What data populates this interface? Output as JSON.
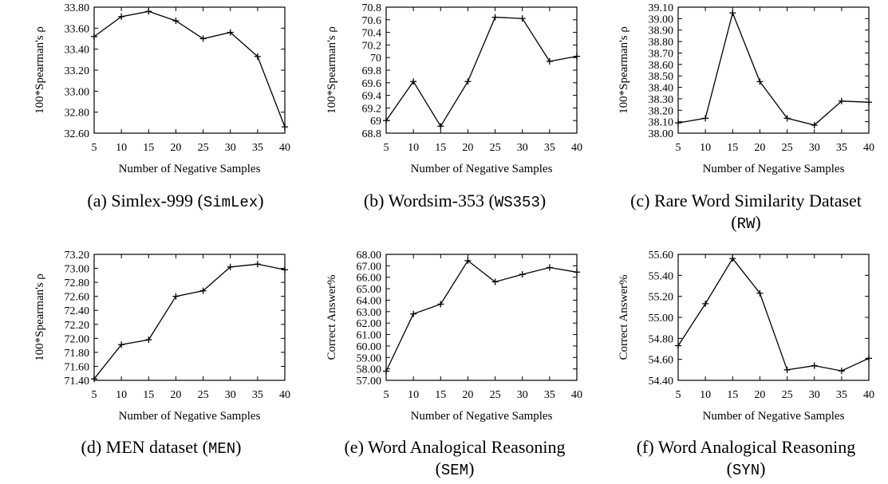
{
  "chart_data": [
    {
      "id": "a",
      "type": "line",
      "x": [
        5,
        10,
        15,
        20,
        25,
        30,
        35,
        40
      ],
      "values": [
        33.52,
        33.71,
        33.76,
        33.67,
        33.5,
        33.56,
        33.33,
        32.66
      ],
      "xlabel": "Number of Negative Samples",
      "ylabel": "100*Spearman's ρ",
      "xticks": [
        "5",
        "10",
        "15",
        "20",
        "25",
        "30",
        "35",
        "40"
      ],
      "yticks": [
        "32.60",
        "32.80",
        "33.00",
        "33.20",
        "33.40",
        "33.60",
        "33.80"
      ],
      "ylim": [
        32.6,
        33.8
      ],
      "caption_prefix": "(a) Simlex-999 (",
      "caption_code": "SimLex",
      "caption_suffix": ")",
      "caption_line2": ""
    },
    {
      "id": "b",
      "type": "line",
      "x": [
        5,
        10,
        15,
        20,
        25,
        30,
        35,
        40
      ],
      "values": [
        69.0,
        69.62,
        68.91,
        69.62,
        70.64,
        70.62,
        69.94,
        70.02
      ],
      "xlabel": "Number of Negative Samples",
      "ylabel": "100*Spearman's ρ",
      "xticks": [
        "5",
        "10",
        "15",
        "20",
        "25",
        "30",
        "35",
        "40"
      ],
      "yticks": [
        "68.8",
        "69",
        "69.2",
        "69.4",
        "69.6",
        "69.8",
        "70",
        "70.2",
        "70.4",
        "70.6",
        "70.8"
      ],
      "ylim": [
        68.8,
        70.8
      ],
      "caption_prefix": "(b) Wordsim-353 (",
      "caption_code": "WS353",
      "caption_suffix": ")",
      "caption_line2": ""
    },
    {
      "id": "c",
      "type": "line",
      "x": [
        5,
        10,
        15,
        20,
        25,
        30,
        35,
        40
      ],
      "values": [
        38.09,
        38.13,
        39.05,
        38.45,
        38.13,
        38.07,
        38.28,
        38.27
      ],
      "xlabel": "Number of Negative Samples",
      "ylabel": "100*Spearman's ρ",
      "xticks": [
        "5",
        "10",
        "15",
        "20",
        "25",
        "30",
        "35",
        "40"
      ],
      "yticks": [
        "38.00",
        "38.10",
        "38.20",
        "38.30",
        "38.40",
        "38.50",
        "38.60",
        "38.70",
        "38.80",
        "38.90",
        "39.00",
        "39.10"
      ],
      "ylim": [
        38.0,
        39.1
      ],
      "caption_prefix": "(c) Rare Word Similarity Dataset",
      "caption_code": "",
      "caption_suffix": "",
      "caption_line2": "RW"
    },
    {
      "id": "d",
      "type": "line",
      "x": [
        5,
        10,
        15,
        20,
        25,
        30,
        35,
        40
      ],
      "values": [
        71.42,
        71.91,
        71.98,
        72.6,
        72.68,
        73.02,
        73.06,
        72.98
      ],
      "xlabel": "Number of Negative Samples",
      "ylabel": "100*Spearman's ρ",
      "xticks": [
        "5",
        "10",
        "15",
        "20",
        "25",
        "30",
        "35",
        "40"
      ],
      "yticks": [
        "71.40",
        "71.60",
        "71.80",
        "72.00",
        "72.20",
        "72.40",
        "72.60",
        "72.80",
        "73.00",
        "73.20"
      ],
      "ylim": [
        71.4,
        73.2
      ],
      "caption_prefix": "(d) MEN dataset (",
      "caption_code": "MEN",
      "caption_suffix": ")",
      "caption_line2": ""
    },
    {
      "id": "e",
      "type": "line",
      "x": [
        5,
        10,
        15,
        20,
        25,
        30,
        35,
        40
      ],
      "values": [
        57.8,
        62.8,
        63.65,
        67.45,
        65.6,
        66.25,
        66.85,
        66.45
      ],
      "xlabel": "Number of Negative Samples",
      "ylabel": "Correct Answer%",
      "xticks": [
        "5",
        "10",
        "15",
        "20",
        "25",
        "30",
        "35",
        "40"
      ],
      "yticks": [
        "57.00",
        "58.00",
        "59.00",
        "60.00",
        "61.00",
        "62.00",
        "63.00",
        "64.00",
        "65.00",
        "66.00",
        "67.00",
        "68.00"
      ],
      "ylim": [
        57.0,
        68.0
      ],
      "caption_prefix": "(e) Word Analogical Reasoning",
      "caption_code": "",
      "caption_suffix": "",
      "caption_line2": "SEM"
    },
    {
      "id": "f",
      "type": "line",
      "x": [
        5,
        10,
        15,
        20,
        25,
        30,
        35,
        40
      ],
      "values": [
        54.73,
        55.13,
        55.56,
        55.23,
        54.5,
        54.54,
        54.49,
        54.61
      ],
      "xlabel": "Number of Negative Samples",
      "ylabel": "Correct Answer%",
      "xticks": [
        "5",
        "10",
        "15",
        "20",
        "25",
        "30",
        "35",
        "40"
      ],
      "yticks": [
        "54.40",
        "54.60",
        "54.80",
        "55.00",
        "55.20",
        "55.40",
        "55.60"
      ],
      "ylim": [
        54.4,
        55.6
      ],
      "caption_prefix": "(f) Word Analogical Reasoning",
      "caption_code": "",
      "caption_suffix": "",
      "caption_line2": "SYN"
    }
  ]
}
